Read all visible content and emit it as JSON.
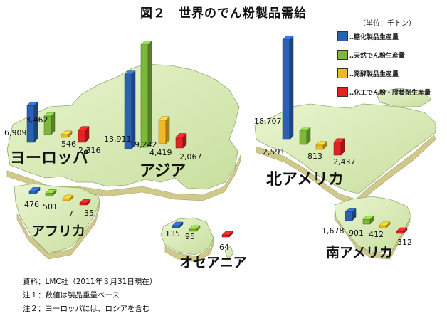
{
  "title": "図２　世界のでん粉製品需給",
  "unit_note": "（単位：千トン）",
  "legend": [
    {
      "label": "‥糖化製品生産量",
      "color": "#2a62b3"
    },
    {
      "label": "‥天然でん粉生産量",
      "color": "#7db83a"
    },
    {
      "label": "‥発酵製品生産量",
      "color": "#f2b824"
    },
    {
      "label": "‥化工でん粉・膠着剤生産量",
      "color": "#e02323"
    }
  ],
  "notes": [
    "資料：LMC社（2011年３月31日現在）",
    "注１：数値は製品重量ベース",
    "注２：ヨーロッパには、ロシアを含む"
  ],
  "chart_data": {
    "type": "bar",
    "title": "図２　世界のでん粉製品需給",
    "unit": "千トン",
    "categories": [
      "ヨーロッパ",
      "アジア",
      "北アメリカ",
      "アフリカ",
      "オセアニア",
      "南アメリカ"
    ],
    "series": [
      {
        "name": "糖化製品生産量",
        "values": [
          6909,
          13911,
          18707,
          476,
          135,
          1678
        ]
      },
      {
        "name": "天然でん粉生産量",
        "values": [
          3462,
          19242,
          2591,
          501,
          95,
          901
        ]
      },
      {
        "name": "発酵製品生産量",
        "values": [
          546,
          4419,
          813,
          7,
          null,
          412
        ]
      },
      {
        "name": "化工でん粉・膠着剤生産量",
        "values": [
          2316,
          2067,
          2437,
          35,
          64,
          312
        ]
      }
    ]
  }
}
